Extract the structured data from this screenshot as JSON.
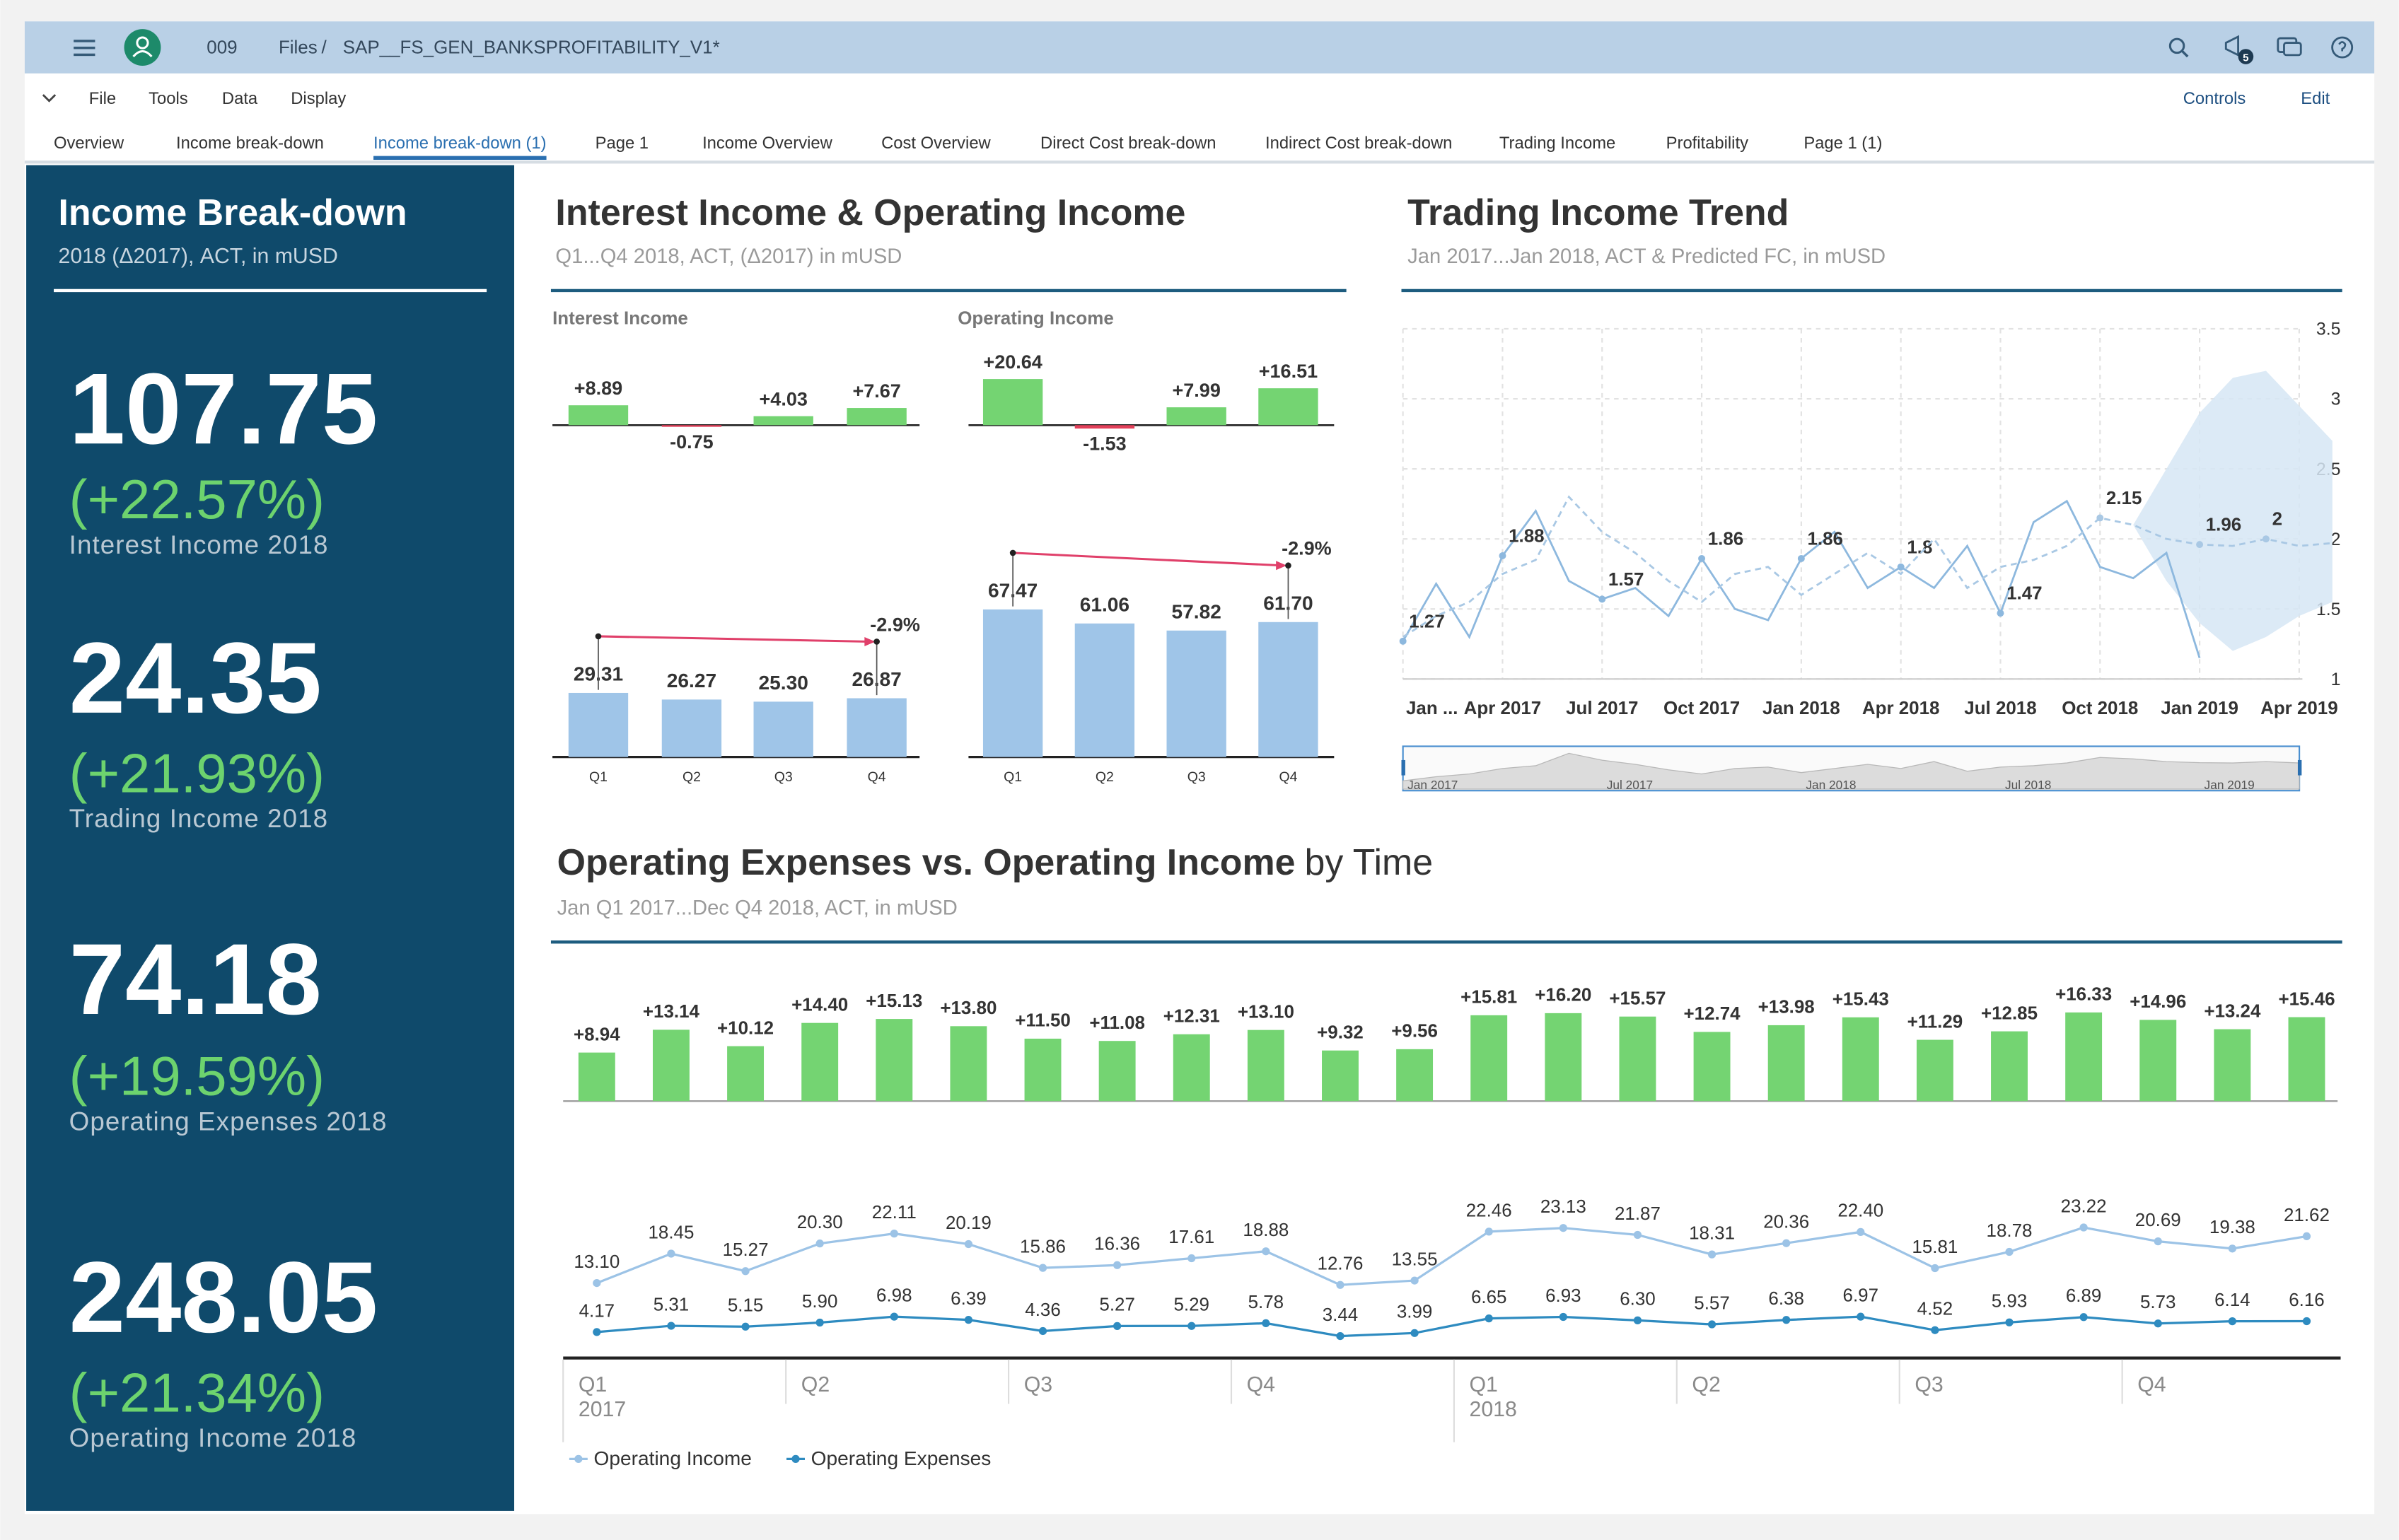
{
  "shell": {
    "breadcrumb": [
      "009",
      "Files",
      "/",
      "SAP__FS_GEN_BANKSPROFITABILITY_V1*"
    ],
    "badge": "5"
  },
  "menu": {
    "left": [
      "File",
      "Tools",
      "Data",
      "Display"
    ],
    "right": [
      "Controls",
      "Edit"
    ]
  },
  "tabs": {
    "items": [
      "Overview",
      "Income break-down",
      "Income break-down (1)",
      "Page 1",
      "Income Overview",
      "Cost Overview",
      "Direct Cost break-down",
      "Indirect Cost break-down",
      "Trading Income",
      "Profitability",
      "Page 1 (1)"
    ],
    "active": 2
  },
  "kpi_panel": {
    "title": "Income Break-down",
    "subtitle": "2018 (Δ2017), ACT, in mUSD",
    "items": [
      {
        "value": 107.75,
        "change": "(+22.57%)",
        "label": "Interest Income 2018"
      },
      {
        "value": 24.35,
        "change": "(+21.93%)",
        "label": "Trading Income 2018"
      },
      {
        "value": 74.18,
        "change": "(+19.59%)",
        "label": "Operating Expenses 2018"
      },
      {
        "value": 248.05,
        "change": "(+21.34%)",
        "label": "Operating Income 2018"
      }
    ]
  },
  "chart_data": [
    {
      "type": "bar",
      "title": "Interest Income & Operating Income",
      "subtitle": "Q1...Q4 2018, ACT, (Δ2017) in mUSD",
      "categories": [
        "Q1",
        "Q2",
        "Q3",
        "Q4"
      ],
      "positive_color": "#74d472",
      "negative_color": "#e2405a",
      "color": "#9fc5e8",
      "annotation_color": "#e0406a",
      "panels": [
        {
          "title": "Interest Income",
          "variance": {
            "values": [
              8.89,
              -0.75,
              4.03,
              7.67
            ],
            "value_labels": [
              "+8.89",
              "-0.75",
              "+4.03",
              "+7.67"
            ]
          },
          "values": [
            29.31,
            26.27,
            25.3,
            26.87
          ],
          "value_labels": [
            "29.31",
            "26.27",
            "25.30",
            "26.87"
          ],
          "annotation": "-2.9%"
        },
        {
          "title": "Operating Income",
          "variance": {
            "values": [
              20.64,
              -1.53,
              7.99,
              16.51
            ],
            "value_labels": [
              "+20.64",
              "-1.53",
              "+7.99",
              "+16.51"
            ]
          },
          "values": [
            67.47,
            61.06,
            57.82,
            61.7
          ],
          "value_labels": [
            "67.47",
            "61.06",
            "57.82",
            "61.70"
          ],
          "annotation": "-2.9%"
        }
      ]
    },
    {
      "type": "line",
      "title": "Trading Income Trend",
      "subtitle": "Jan 2017...Jan 2018, ACT & Predicted FC, in mUSD",
      "x": [
        "Jan 2017",
        "Feb 2017",
        "Mar 2017",
        "Apr 2017",
        "May 2017",
        "Jun 2017",
        "Jul 2017",
        "Aug 2017",
        "Sep 2017",
        "Oct 2017",
        "Nov 2017",
        "Dec 2017",
        "Jan 2018",
        "Feb 2018",
        "Mar 2018",
        "Apr 2018",
        "May 2018",
        "Jun 2018",
        "Jul 2018",
        "Aug 2018",
        "Sep 2018",
        "Oct 2018",
        "Nov 2018",
        "Dec 2018",
        "Jan 2019",
        "Feb 2019",
        "Mar 2019",
        "Apr 2019",
        "May 2019"
      ],
      "xticks": [
        {
          "value": "Jan 2017",
          "label": "Jan ..."
        },
        "Apr 2017",
        "Jul 2017",
        "Oct 2017",
        "Jan 2018",
        "Apr 2018",
        "Jul 2018",
        "Oct 2018",
        "Jan 2019",
        "Apr 2019"
      ],
      "ylim": [
        1,
        3.5
      ],
      "yticks": [
        1,
        1.5,
        2,
        2.5,
        3,
        3.5
      ],
      "grid": true,
      "series": [
        {
          "color": "#8db8de",
          "dashed": false,
          "labeled": [
            0,
            3,
            6,
            9,
            12,
            15,
            18
          ],
          "values": [
            1.27,
            1.68,
            1.3,
            1.88,
            2.2,
            1.7,
            1.57,
            1.65,
            1.45,
            1.86,
            1.5,
            1.42,
            1.86,
            2.05,
            1.65,
            1.8,
            1.65,
            1.95,
            1.47,
            2.12,
            2.27,
            1.8,
            1.72,
            1.9,
            1.15,
            null,
            null,
            null,
            null
          ]
        },
        {
          "color": "#a9c8e4",
          "dashed": true,
          "labeled": [
            21,
            24,
            26
          ],
          "values": [
            1.3,
            1.45,
            1.55,
            1.75,
            1.85,
            2.3,
            2.05,
            1.9,
            1.7,
            1.55,
            1.75,
            1.8,
            1.6,
            1.75,
            1.9,
            1.75,
            2.0,
            1.65,
            1.8,
            1.85,
            1.95,
            2.15,
            2.1,
            2.0,
            1.96,
            1.95,
            2,
            1.95,
            1.97
          ]
        }
      ],
      "band": {
        "color": "#d6e6f4",
        "upper": [
          null,
          null,
          null,
          null,
          null,
          null,
          null,
          null,
          null,
          null,
          null,
          null,
          null,
          null,
          null,
          null,
          null,
          null,
          null,
          null,
          null,
          null,
          2.1,
          2.5,
          2.9,
          3.15,
          3.2,
          2.95,
          2.7
        ],
        "lower": [
          null,
          null,
          null,
          null,
          null,
          null,
          null,
          null,
          null,
          null,
          null,
          null,
          null,
          null,
          null,
          null,
          null,
          null,
          null,
          null,
          null,
          null,
          2.1,
          1.7,
          1.4,
          1.2,
          1.3,
          1.45,
          1.55
        ]
      },
      "navigator": {
        "xticks": [
          "Jan 2017",
          "Jul 2017",
          "Jan 2018",
          "Jul 2018",
          "Jan 2019"
        ]
      }
    },
    {
      "type": "combo",
      "title": "Operating Expenses vs. Operating Income",
      "title_suffix": "by Time",
      "subtitle": "Jan Q1 2017...Dec Q4 2018, ACT, in mUSD",
      "categories": [
        null,
        null,
        null,
        null,
        null,
        null,
        null,
        null,
        null,
        null,
        null,
        null,
        null,
        null,
        null,
        null,
        null,
        null,
        null,
        null,
        null,
        null,
        null,
        null
      ],
      "quarters": [
        {
          "label": "Q1",
          "year": "2017"
        },
        {
          "label": "Q2"
        },
        {
          "label": "Q3"
        },
        {
          "label": "Q4"
        },
        {
          "label": "Q1",
          "year": "2018"
        },
        {
          "label": "Q2"
        },
        {
          "label": "Q3"
        },
        {
          "label": "Q4"
        }
      ],
      "variance": {
        "color": "#74d472",
        "values": [
          8.94,
          13.14,
          10.12,
          14.4,
          15.13,
          13.8,
          11.5,
          11.08,
          12.31,
          13.1,
          9.32,
          9.56,
          15.81,
          16.2,
          15.57,
          12.74,
          13.98,
          15.43,
          11.29,
          12.85,
          16.33,
          14.96,
          13.24,
          15.46
        ],
        "value_labels": [
          "+8.94",
          "+13.14",
          "+10.12",
          "+14.40",
          "+15.13",
          "+13.80",
          "+11.50",
          "+11.08",
          "+12.31",
          "+13.10",
          "+9.32",
          "+9.56",
          "+15.81",
          "+16.20",
          "+15.57",
          "+12.74",
          "+13.98",
          "+15.43",
          "+11.29",
          "+12.85",
          "+16.33",
          "+14.96",
          "+13.24",
          "+15.46"
        ]
      },
      "series": [
        {
          "name": "Operating Income",
          "color": "#9cc3e6",
          "values": [
            13.1,
            18.45,
            15.27,
            20.3,
            22.11,
            20.19,
            15.86,
            16.36,
            17.61,
            18.88,
            12.76,
            13.55,
            22.46,
            23.13,
            21.87,
            18.31,
            20.36,
            22.4,
            15.81,
            18.78,
            23.22,
            20.69,
            19.38,
            21.62
          ],
          "value_labels": [
            "13.10",
            "18.45",
            "15.27",
            "20.30",
            "22.11",
            "20.19",
            "15.86",
            "16.36",
            "17.61",
            "18.88",
            "12.76",
            "13.55",
            "22.46",
            "23.13",
            "21.87",
            "18.31",
            "20.36",
            "22.40",
            "15.81",
            "18.78",
            "23.22",
            "20.69",
            "19.38",
            "21.62"
          ]
        },
        {
          "name": "Operating Expenses",
          "color": "#2e8bc0",
          "values": [
            4.17,
            5.31,
            5.15,
            5.9,
            6.98,
            6.39,
            4.36,
            5.27,
            5.29,
            5.78,
            3.44,
            3.99,
            6.65,
            6.93,
            6.3,
            5.57,
            6.38,
            6.97,
            4.52,
            5.93,
            6.89,
            5.73,
            6.14,
            6.16
          ],
          "value_labels": [
            "4.17",
            "5.31",
            "5.15",
            "5.90",
            "6.98",
            "6.39",
            "4.36",
            "5.27",
            "5.29",
            "5.78",
            "3.44",
            "3.99",
            "6.65",
            "6.93",
            "6.30",
            "5.57",
            "6.38",
            "6.97",
            "4.52",
            "5.93",
            "6.89",
            "5.73",
            "6.14",
            "6.16"
          ]
        }
      ]
    }
  ]
}
